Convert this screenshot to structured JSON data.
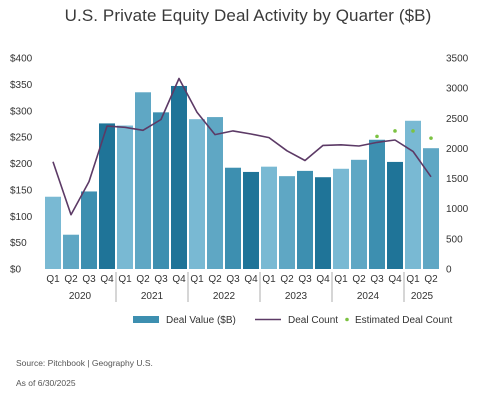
{
  "chart_data": {
    "type": "bar",
    "title": "U.S. Private Equity Deal Activity by Quarter ($B)",
    "categories": [
      "Q1",
      "Q2",
      "Q3",
      "Q4",
      "Q1",
      "Q2",
      "Q3",
      "Q4",
      "Q1",
      "Q2",
      "Q3",
      "Q4",
      "Q1",
      "Q2",
      "Q3",
      "Q4",
      "Q1",
      "Q2",
      "Q3",
      "Q4",
      "Q1",
      "Q2"
    ],
    "years": [
      {
        "label": "2020",
        "quarters": 4
      },
      {
        "label": "2021",
        "quarters": 4
      },
      {
        "label": "2022",
        "quarters": 4
      },
      {
        "label": "2023",
        "quarters": 4
      },
      {
        "label": "2024",
        "quarters": 4
      },
      {
        "label": "2025",
        "quarters": 2
      }
    ],
    "y_left": {
      "min": 0,
      "max": 400,
      "ticks": [
        "$0",
        "$50",
        "$100",
        "$150",
        "$200",
        "$250",
        "$300",
        "$350",
        "$400"
      ]
    },
    "y_right": {
      "min": 0,
      "max": 3500,
      "ticks": [
        "0",
        "500",
        "1000",
        "1500",
        "2000",
        "2500",
        "3000",
        "3500"
      ]
    },
    "series": [
      {
        "name": "Deal Value ($B)",
        "type": "bar",
        "axis": "left",
        "values": [
          137,
          65,
          147,
          276,
          272,
          335,
          297,
          347,
          284,
          288,
          192,
          184,
          194,
          176,
          186,
          174,
          190,
          207,
          245,
          203,
          281,
          229
        ],
        "colors": [
          "#79b9d3",
          "#5fa7c4",
          "#3d8fb0",
          "#1f7498",
          "#79b9d3",
          "#5fa7c4",
          "#3d8fb0",
          "#1f7498",
          "#79b9d3",
          "#5fa7c4",
          "#3d8fb0",
          "#1f7498",
          "#79b9d3",
          "#5fa7c4",
          "#3d8fb0",
          "#1f7498",
          "#79b9d3",
          "#5fa7c4",
          "#3d8fb0",
          "#1f7498",
          "#79b9d3",
          "#5fa7c4"
        ]
      },
      {
        "name": "Deal Count",
        "type": "line",
        "axis": "right",
        "color": "#5c3a66",
        "values": [
          1780,
          900,
          1450,
          2370,
          2350,
          2300,
          2480,
          3160,
          2600,
          2230,
          2290,
          2240,
          2180,
          1960,
          1800,
          2050,
          2060,
          2040,
          2100,
          2140,
          1950,
          1530
        ]
      },
      {
        "name": "Estimated Deal Count",
        "type": "scatter",
        "axis": "right",
        "color": "#7cc242",
        "points": [
          [
            18,
            2200
          ],
          [
            19,
            2290
          ],
          [
            20,
            2290
          ],
          [
            21,
            2170
          ]
        ]
      }
    ],
    "legend": "bottom"
  },
  "footer": {
    "source": "Source: Pitchbook | Geography U.S.",
    "as_of": "As of 6/30/2025"
  }
}
